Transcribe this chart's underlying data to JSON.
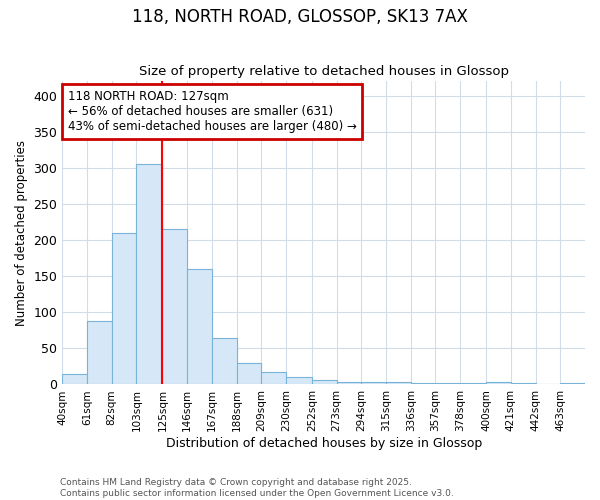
{
  "title": "118, NORTH ROAD, GLOSSOP, SK13 7AX",
  "subtitle": "Size of property relative to detached houses in Glossop",
  "xlabel": "Distribution of detached houses by size in Glossop",
  "ylabel": "Number of detached properties",
  "bar_color": "#d6e8f7",
  "bar_edge_color": "#7ab3d9",
  "background_color": "#ffffff",
  "grid_color": "#d0dce8",
  "red_line_x": 125,
  "annotation_line1": "118 NORTH ROAD: 127sqm",
  "annotation_line2": "← 56% of detached houses are smaller (631)",
  "annotation_line3": "43% of semi-detached houses are larger (480) →",
  "annotation_box_color": "#cc0000",
  "footer_text": "Contains HM Land Registry data © Crown copyright and database right 2025.\nContains public sector information licensed under the Open Government Licence v3.0.",
  "bin_edges": [
    40,
    61,
    82,
    103,
    125,
    146,
    167,
    188,
    209,
    230,
    252,
    273,
    294,
    315,
    336,
    357,
    378,
    400,
    421,
    442,
    463,
    484
  ],
  "bar_heights": [
    15,
    88,
    210,
    305,
    215,
    160,
    65,
    30,
    17,
    10,
    6,
    4,
    3,
    3,
    2,
    2,
    2,
    3,
    2,
    1,
    2
  ],
  "ylim": [
    0,
    420
  ],
  "yticks": [
    0,
    50,
    100,
    150,
    200,
    250,
    300,
    350,
    400
  ]
}
